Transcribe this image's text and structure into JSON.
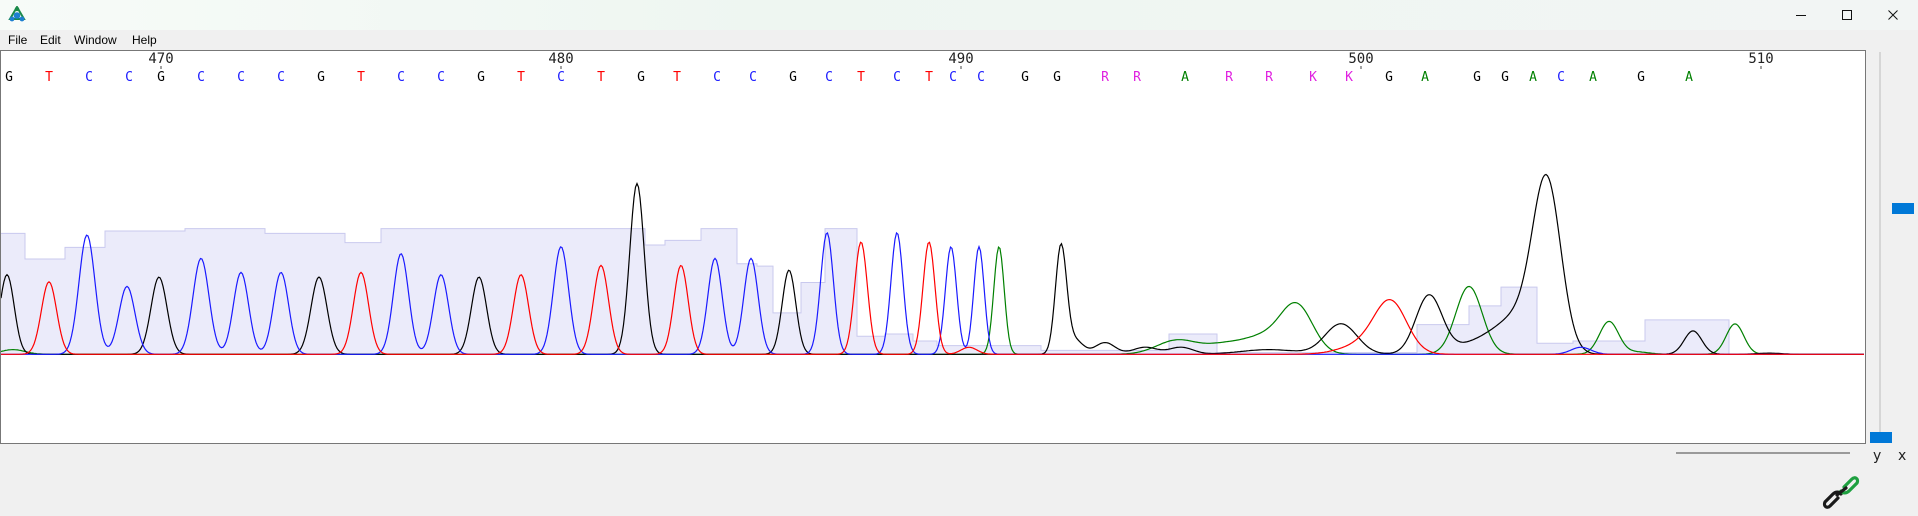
{
  "app": {
    "icon": "app-logo-icon"
  },
  "window_controls": {
    "minimize": "—",
    "maximize": "☐",
    "close": "✕"
  },
  "menu": {
    "items": [
      "File",
      "Edit",
      "Window",
      "Help"
    ]
  },
  "colors": {
    "A": "#008000",
    "C": "#1a1aff",
    "G": "#000000",
    "T": "#ff0000",
    "ambiguous": "#e020e0",
    "quality": "#ebebfa",
    "accent": "#0078d7"
  },
  "chart_data": {
    "type": "line",
    "title": "",
    "xlabel": "",
    "ylabel": "",
    "ticks": [
      {
        "label": "470",
        "position": 470
      },
      {
        "label": "480",
        "position": 480
      },
      {
        "label": "490",
        "position": 490
      },
      {
        "label": "500",
        "position": 500
      },
      {
        "label": "510",
        "position": 510
      }
    ],
    "base_calls": [
      {
        "base": "G",
        "position": 466.2
      },
      {
        "base": "T",
        "position": 467.2
      },
      {
        "base": "C",
        "position": 468.2
      },
      {
        "base": "C",
        "position": 469.2
      },
      {
        "base": "G",
        "position": 470.0
      },
      {
        "base": "C",
        "position": 471.0
      },
      {
        "base": "C",
        "position": 472.0
      },
      {
        "base": "C",
        "position": 473.0
      },
      {
        "base": "G",
        "position": 474.0
      },
      {
        "base": "T",
        "position": 475.0
      },
      {
        "base": "C",
        "position": 476.0
      },
      {
        "base": "C",
        "position": 477.0
      },
      {
        "base": "G",
        "position": 478.0
      },
      {
        "base": "T",
        "position": 479.0
      },
      {
        "base": "C",
        "position": 480.0
      },
      {
        "base": "T",
        "position": 481.0
      },
      {
        "base": "G",
        "position": 482.0
      },
      {
        "base": "T",
        "position": 482.9
      },
      {
        "base": "C",
        "position": 483.9
      },
      {
        "base": "C",
        "position": 484.8
      },
      {
        "base": "G",
        "position": 485.8
      },
      {
        "base": "C",
        "position": 486.7
      },
      {
        "base": "T",
        "position": 487.5
      },
      {
        "base": "C",
        "position": 488.4
      },
      {
        "base": "T",
        "position": 489.2
      },
      {
        "base": "C",
        "position": 489.8
      },
      {
        "base": "C",
        "position": 490.5
      },
      {
        "base": "G",
        "position": 491.6
      },
      {
        "base": "G",
        "position": 492.4
      },
      {
        "base": "R",
        "position": 493.6
      },
      {
        "base": "R",
        "position": 494.4
      },
      {
        "base": "A",
        "position": 495.6
      },
      {
        "base": "R",
        "position": 496.7
      },
      {
        "base": "R",
        "position": 497.7
      },
      {
        "base": "K",
        "position": 498.8
      },
      {
        "base": "K",
        "position": 499.7
      },
      {
        "base": "G",
        "position": 500.7
      },
      {
        "base": "A",
        "position": 501.6
      },
      {
        "base": "G",
        "position": 502.9
      },
      {
        "base": "G",
        "position": 503.6
      },
      {
        "base": "A",
        "position": 504.3
      },
      {
        "base": "C",
        "position": 505.0
      },
      {
        "base": "A",
        "position": 505.8
      },
      {
        "base": "G",
        "position": 507.0
      },
      {
        "base": "A",
        "position": 508.2
      }
    ],
    "quality_bars": [
      {
        "from": 465.9,
        "to": 466.6,
        "qv": 0.52
      },
      {
        "from": 466.6,
        "to": 467.6,
        "qv": 0.41
      },
      {
        "from": 467.6,
        "to": 468.6,
        "qv": 0.46
      },
      {
        "from": 468.6,
        "to": 470.6,
        "qv": 0.53
      },
      {
        "from": 470.6,
        "to": 472.6,
        "qv": 0.54
      },
      {
        "from": 472.6,
        "to": 474.6,
        "qv": 0.52
      },
      {
        "from": 474.6,
        "to": 475.5,
        "qv": 0.48
      },
      {
        "from": 475.5,
        "to": 476.5,
        "qv": 0.54
      },
      {
        "from": 476.5,
        "to": 482.1,
        "qv": 0.54
      },
      {
        "from": 482.1,
        "to": 482.6,
        "qv": 0.47
      },
      {
        "from": 482.6,
        "to": 483.5,
        "qv": 0.49
      },
      {
        "from": 483.5,
        "to": 484.4,
        "qv": 0.54
      },
      {
        "from": 484.4,
        "to": 484.9,
        "qv": 0.39
      },
      {
        "from": 484.9,
        "to": 485.3,
        "qv": 0.38
      },
      {
        "from": 485.3,
        "to": 486.0,
        "qv": 0.18
      },
      {
        "from": 486.0,
        "to": 486.6,
        "qv": 0.31
      },
      {
        "from": 486.6,
        "to": 487.4,
        "qv": 0.54
      },
      {
        "from": 487.4,
        "to": 488.1,
        "qv": 0.08
      },
      {
        "from": 488.1,
        "to": 488.8,
        "qv": 0.09
      },
      {
        "from": 488.8,
        "to": 489.4,
        "qv": 0.06
      },
      {
        "from": 489.4,
        "to": 492.0,
        "qv": 0.04
      },
      {
        "from": 492.0,
        "to": 495.2,
        "qv": 0.02
      },
      {
        "from": 495.2,
        "to": 496.4,
        "qv": 0.09
      },
      {
        "from": 496.4,
        "to": 501.4,
        "qv": 0.01
      },
      {
        "from": 501.4,
        "to": 502.7,
        "qv": 0.13
      },
      {
        "from": 502.7,
        "to": 503.5,
        "qv": 0.21
      },
      {
        "from": 503.5,
        "to": 504.4,
        "qv": 0.29
      },
      {
        "from": 504.4,
        "to": 505.3,
        "qv": 0.05
      },
      {
        "from": 505.3,
        "to": 507.1,
        "qv": 0.06
      },
      {
        "from": 507.1,
        "to": 509.2,
        "qv": 0.15
      }
    ],
    "traces": {
      "G": {
        "baseline": 0.003,
        "peaks": [
          [
            466.15,
            0.34,
            0.18
          ],
          [
            469.95,
            0.33,
            0.2
          ],
          [
            473.95,
            0.33,
            0.2
          ],
          [
            477.95,
            0.33,
            0.19
          ],
          [
            481.9,
            0.73,
            0.18
          ],
          [
            485.7,
            0.36,
            0.17
          ],
          [
            492.5,
            0.46,
            0.14
          ],
          [
            492.85,
            0.06,
            0.2
          ],
          [
            493.6,
            0.05,
            0.25
          ],
          [
            494.6,
            0.03,
            0.3
          ],
          [
            495.5,
            0.03,
            0.3
          ],
          [
            497.7,
            0.02,
            0.7
          ],
          [
            499.5,
            0.13,
            0.4
          ],
          [
            501.7,
            0.25,
            0.33
          ],
          [
            504.65,
            0.69,
            0.35
          ],
          [
            504.0,
            0.15,
            0.55
          ],
          [
            503.0,
            0.05,
            0.6
          ],
          [
            508.3,
            0.1,
            0.22
          ],
          [
            510.2,
            0.005,
            0.3
          ]
        ]
      },
      "C": {
        "baseline": 0.003,
        "peaks": [
          [
            468.15,
            0.51,
            0.2
          ],
          [
            469.15,
            0.29,
            0.2
          ],
          [
            471.0,
            0.41,
            0.2
          ],
          [
            472.0,
            0.35,
            0.19
          ],
          [
            473.0,
            0.35,
            0.19
          ],
          [
            476.0,
            0.43,
            0.19
          ],
          [
            477.0,
            0.34,
            0.19
          ],
          [
            480.0,
            0.46,
            0.19
          ],
          [
            483.85,
            0.41,
            0.18
          ],
          [
            484.75,
            0.41,
            0.18
          ],
          [
            486.65,
            0.52,
            0.16
          ],
          [
            488.4,
            0.52,
            0.15
          ],
          [
            489.75,
            0.46,
            0.14
          ],
          [
            490.45,
            0.46,
            0.13
          ],
          [
            505.5,
            0.03,
            0.25
          ]
        ]
      },
      "T": {
        "baseline": 0.003,
        "peaks": [
          [
            467.2,
            0.31,
            0.19
          ],
          [
            475.0,
            0.35,
            0.19
          ],
          [
            479.0,
            0.34,
            0.19
          ],
          [
            481.0,
            0.38,
            0.19
          ],
          [
            483.0,
            0.38,
            0.18
          ],
          [
            487.5,
            0.48,
            0.16
          ],
          [
            489.2,
            0.48,
            0.15
          ],
          [
            490.2,
            0.03,
            0.2
          ],
          [
            500.75,
            0.2,
            0.4
          ],
          [
            500.2,
            0.05,
            0.6
          ]
        ]
      },
      "A": {
        "baseline": 0.003,
        "peaks": [
          [
            466.3,
            0.02,
            0.3
          ],
          [
            490.95,
            0.46,
            0.13
          ],
          [
            495.4,
            0.06,
            0.5
          ],
          [
            496.6,
            0.04,
            0.5
          ],
          [
            498.4,
            0.2,
            0.4
          ],
          [
            497.6,
            0.07,
            0.5
          ],
          [
            502.7,
            0.29,
            0.33
          ],
          [
            506.2,
            0.14,
            0.24
          ],
          [
            509.35,
            0.13,
            0.22
          ],
          [
            506.9,
            0.01,
            0.3
          ]
        ]
      }
    },
    "x_range": [
      466.0,
      512.6
    ],
    "y_range": [
      0,
      1
    ]
  },
  "scrollbar": {
    "y_label": "y",
    "x_label": "x"
  },
  "footer": {
    "icon": "link-icon"
  }
}
